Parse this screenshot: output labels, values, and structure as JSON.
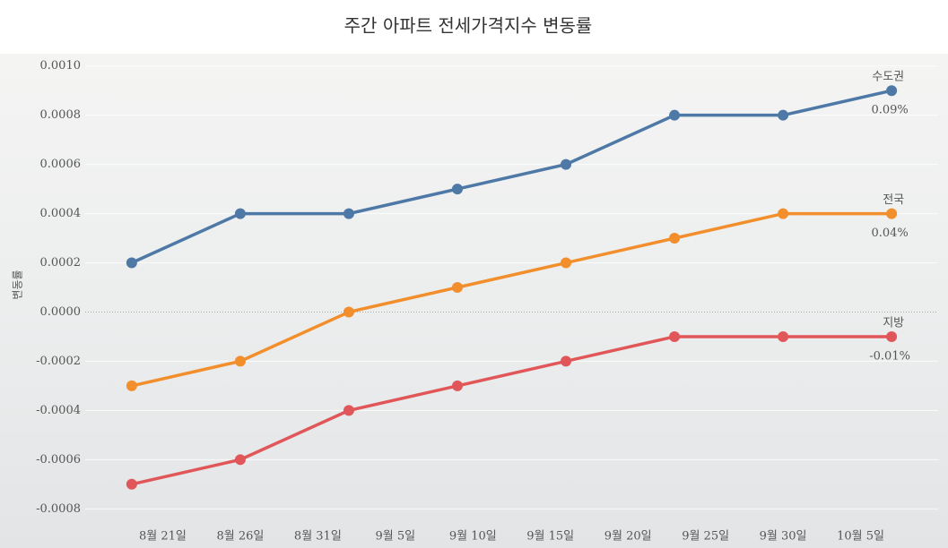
{
  "chart_data": {
    "type": "line",
    "title": "주간 아파트 전세가격지수 변동률",
    "y_label": "변동률",
    "x": [
      "08-19",
      "08-26",
      "09-02",
      "09-09",
      "09-16",
      "09-23",
      "09-30",
      "10-07"
    ],
    "xlim": [
      "08-16",
      "10-10"
    ],
    "xticks": [
      {
        "value": "08-21",
        "label": "8월 21일"
      },
      {
        "value": "08-26",
        "label": "8월 26일"
      },
      {
        "value": "08-31",
        "label": "8월 31일"
      },
      {
        "value": "09-05",
        "label": "9월 5일"
      },
      {
        "value": "09-10",
        "label": "9월 10일"
      },
      {
        "value": "09-15",
        "label": "9월 15일"
      },
      {
        "value": "09-20",
        "label": "9월 20일"
      },
      {
        "value": "09-25",
        "label": "9월 25일"
      },
      {
        "value": "09-30",
        "label": "9월 30일"
      },
      {
        "value": "10-05",
        "label": "10월 5일"
      }
    ],
    "ylim": [
      -0.00085,
      0.00105
    ],
    "yticks": [
      {
        "value": 0.001,
        "label": "0.0010"
      },
      {
        "value": 0.0008,
        "label": "0.0008"
      },
      {
        "value": 0.0006,
        "label": "0.0006"
      },
      {
        "value": 0.0004,
        "label": "0.0004"
      },
      {
        "value": 0.0002,
        "label": "0.0002"
      },
      {
        "value": 0,
        "label": "0.0000"
      },
      {
        "value": -0.0002,
        "label": "-0.0002"
      },
      {
        "value": -0.0004,
        "label": "-0.0004"
      },
      {
        "value": -0.0006,
        "label": "-0.0006"
      },
      {
        "value": -0.0008,
        "label": "-0.0008"
      }
    ],
    "grid": true,
    "series": [
      {
        "name": "수도권",
        "color": "#4e79a7",
        "values": [
          0.0002,
          0.0004,
          0.0004,
          0.0005,
          0.0006,
          0.0008,
          0.0008,
          0.0009
        ],
        "value_labels": [
          null,
          null,
          null,
          null,
          null,
          null,
          null,
          "0.09%"
        ]
      },
      {
        "name": "전국",
        "color": "#f28e2b",
        "values": [
          -0.0003,
          -0.0002,
          0.0,
          0.0001,
          0.0002,
          0.0003,
          0.0004,
          0.0004
        ],
        "value_labels": [
          null,
          null,
          null,
          null,
          null,
          null,
          null,
          "0.04%"
        ]
      },
      {
        "name": "지방",
        "color": "#e15759",
        "values": [
          -0.0007,
          -0.0006,
          -0.0004,
          -0.0003,
          -0.0002,
          -0.0001,
          -0.0001,
          -0.0001
        ],
        "value_labels": [
          null,
          null,
          null,
          null,
          null,
          null,
          null,
          "-0.01%"
        ]
      }
    ]
  }
}
